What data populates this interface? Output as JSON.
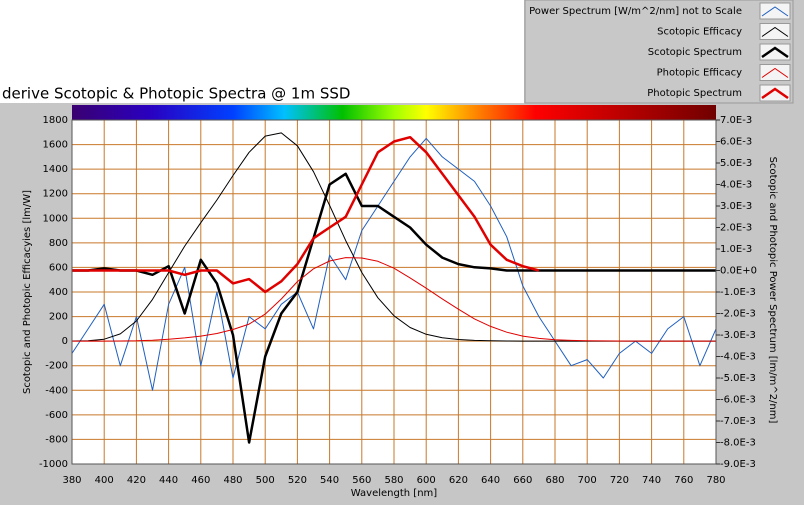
{
  "chart_data": {
    "type": "line",
    "title": "derive Scotopic & Photopic Spectra @ 1m SSD",
    "xlabel": "Wavelength [nm]",
    "ylabel": "Scotopic and Photopic Efficacyies [lm/W]",
    "y2label": "Scotopic and Photopic Power Spectrum [lm/m^2/nm]",
    "x": [
      380,
      390,
      400,
      410,
      420,
      430,
      440,
      450,
      460,
      470,
      480,
      490,
      500,
      510,
      520,
      530,
      540,
      550,
      560,
      570,
      580,
      590,
      600,
      610,
      620,
      630,
      640,
      650,
      660,
      670,
      680,
      690,
      700,
      710,
      720,
      730,
      740,
      750,
      760,
      770,
      780
    ],
    "xlim": [
      380,
      780
    ],
    "xticks": [
      380,
      400,
      420,
      440,
      460,
      480,
      500,
      520,
      540,
      560,
      580,
      600,
      620,
      640,
      660,
      680,
      700,
      720,
      740,
      760,
      780
    ],
    "ylim": [
      -1000,
      1800
    ],
    "yticks": [
      -1000,
      -800,
      -600,
      -400,
      -200,
      0,
      200,
      400,
      600,
      800,
      1000,
      1200,
      1400,
      1600,
      1800
    ],
    "y2lim": [
      -0.009,
      0.007
    ],
    "y2ticks": [
      {
        "value": 0.007,
        "label": "7.0E-3"
      },
      {
        "value": 0.006,
        "label": "6.0E-3"
      },
      {
        "value": 0.005,
        "label": "5.0E-3"
      },
      {
        "value": 0.004,
        "label": "4.0E-3"
      },
      {
        "value": 0.003,
        "label": "3.0E-3"
      },
      {
        "value": 0.002,
        "label": "2.0E-3"
      },
      {
        "value": 0.001,
        "label": "1.0E-3"
      },
      {
        "value": 0,
        "label": "0.0E+0"
      },
      {
        "value": -0.001,
        "label": "-1.0E-3"
      },
      {
        "value": -0.002,
        "label": "-2.0E-3"
      },
      {
        "value": -0.003,
        "label": "-3.0E-3"
      },
      {
        "value": -0.004,
        "label": "-4.0E-3"
      },
      {
        "value": -0.005,
        "label": "-5.0E-3"
      },
      {
        "value": -0.006,
        "label": "-6.0E-3"
      },
      {
        "value": -0.007,
        "label": "-7.0E-3"
      },
      {
        "value": -0.008,
        "label": "-8.0E-3"
      },
      {
        "value": -0.009,
        "label": "-9.0E-3"
      }
    ],
    "grid": true,
    "legend": "top-right",
    "series": [
      {
        "name": "Power Spectrum [W/m^2/nm] not to Scale",
        "color": "#1f5fc0",
        "width": 1,
        "values": [
          -100,
          100,
          300,
          -200,
          200,
          -400,
          300,
          600,
          -200,
          400,
          -300,
          200,
          100,
          300,
          400,
          100,
          700,
          500,
          900,
          1100,
          1300,
          1500,
          1650,
          1500,
          1400,
          1300,
          1100,
          850,
          450,
          200,
          0,
          -200,
          -150,
          -300,
          -100,
          0,
          -100,
          100,
          200,
          -200,
          100
        ]
      },
      {
        "name": "Scotopic Efficacy",
        "color": "#000000",
        "width": 1,
        "values": [
          1,
          4,
          16,
          59,
          164,
          340,
          558,
          774,
          964,
          1149,
          1348,
          1537,
          1669,
          1695,
          1590,
          1379,
          1105,
          818,
          559,
          353,
          206,
          111,
          56,
          27,
          13,
          6,
          3,
          1,
          0,
          0,
          0,
          0,
          0,
          0,
          0,
          0,
          0,
          0,
          0,
          0,
          0
        ]
      },
      {
        "name": "Scotopic Spectrum",
        "color": "#000000",
        "width": 2.5,
        "axis": "y2",
        "values": [
          0,
          0,
          0.0001,
          0,
          0,
          -0.0002,
          0.0002,
          -0.002,
          0.0005,
          -0.0006,
          -0.003,
          -0.008,
          -0.004,
          -0.002,
          -0.001,
          0.0015,
          0.004,
          0.0045,
          0.003,
          0.003,
          0.0025,
          0.002,
          0.0012,
          0.0006,
          0.0003,
          0.00015,
          0.0001,
          0,
          0,
          0,
          0,
          0,
          0,
          0,
          0,
          0,
          0,
          0,
          0,
          0,
          0
        ]
      },
      {
        "name": "Photopic Efficacy",
        "color": "#e00000",
        "width": 1,
        "values": [
          0,
          0,
          0,
          1,
          3,
          8,
          16,
          26,
          41,
          62,
          95,
          139,
          220,
          343,
          485,
          589,
          652,
          680,
          677,
          650,
          594,
          515,
          431,
          344,
          260,
          181,
          120,
          73,
          41,
          22,
          11,
          6,
          3,
          2,
          1,
          0,
          0,
          0,
          0,
          0,
          0
        ]
      },
      {
        "name": "Photopic Spectrum",
        "color": "#e00000",
        "width": 2.5,
        "axis": "y2",
        "values": [
          0,
          0,
          0,
          0,
          0,
          0,
          0,
          -0.0002,
          0,
          0,
          -0.0006,
          -0.0004,
          -0.001,
          -0.0005,
          0.0003,
          0.0015,
          0.002,
          0.0025,
          0.004,
          0.0055,
          0.006,
          0.0062,
          0.0055,
          0.0045,
          0.0035,
          0.0025,
          0.0012,
          0.0005,
          0.0002,
          0,
          null,
          null,
          null,
          null,
          null,
          null,
          null,
          null,
          null,
          null,
          null
        ]
      }
    ]
  }
}
